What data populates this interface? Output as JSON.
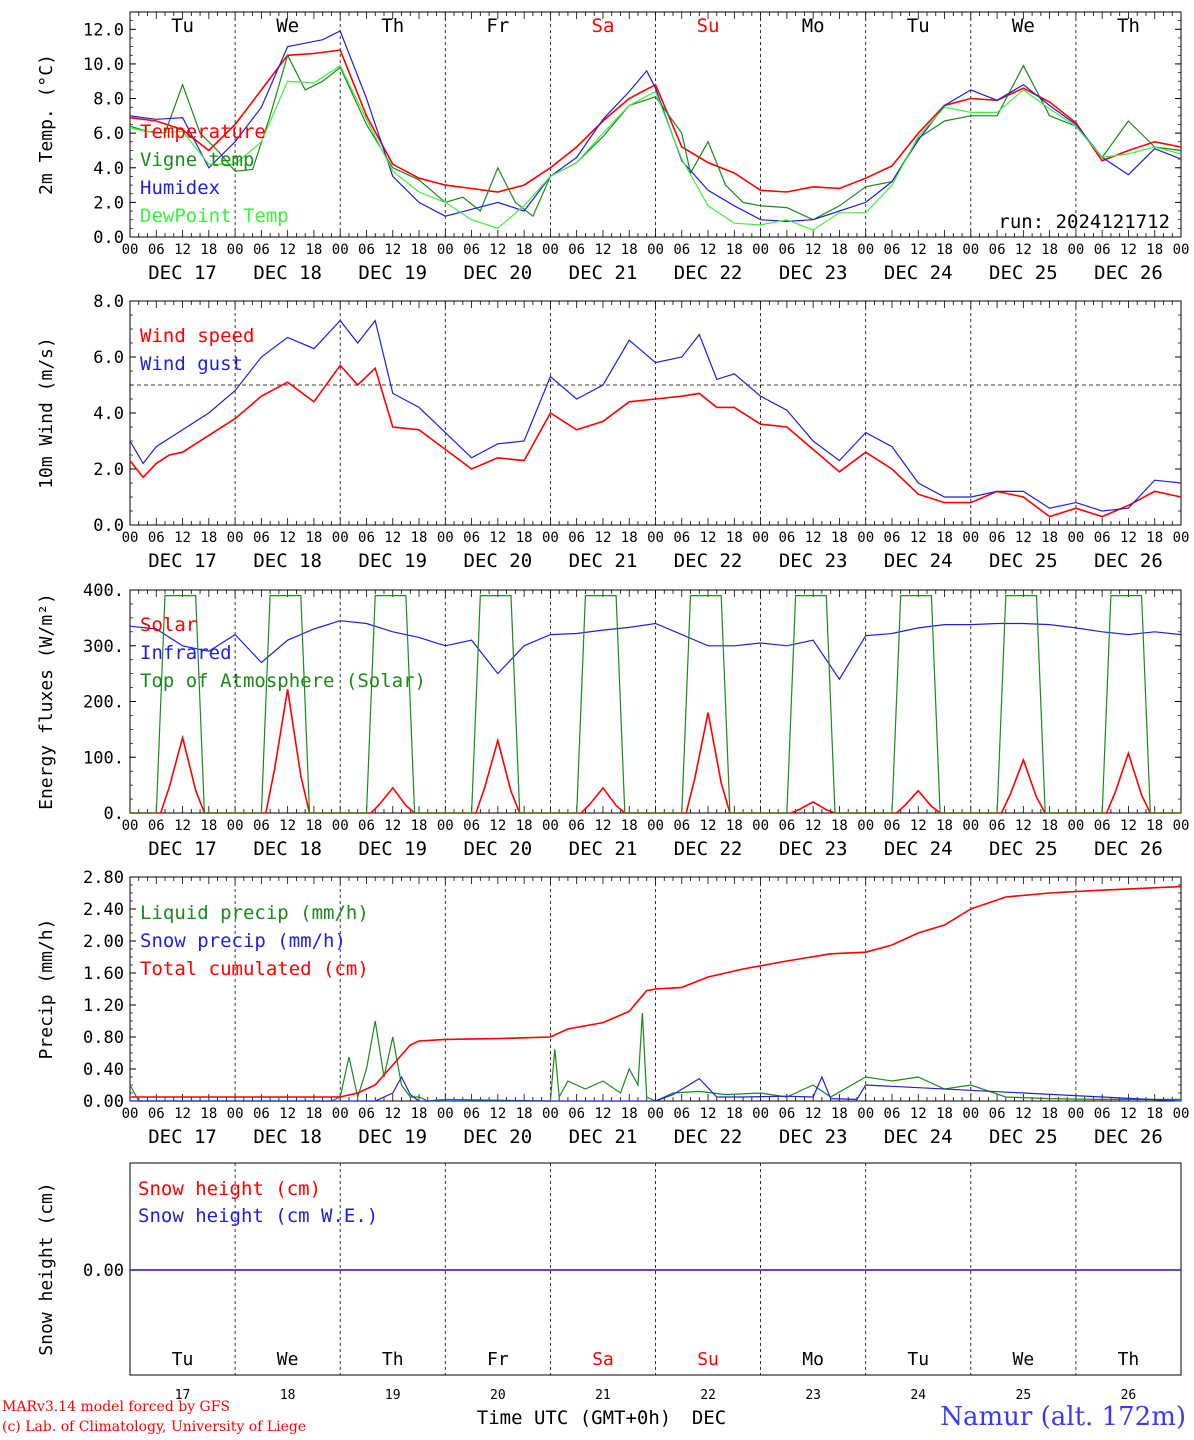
{
  "station": "Namur (alt. 172m)",
  "credits": [
    "MARv3.14 model forced by GFS",
    "(c) Lab. of Climatology, University of Liege"
  ],
  "run_label": "run: 2024121712",
  "xaxis_title": "Time UTC (GMT+0h)",
  "month_label": "DEC",
  "colors": {
    "red": "#ff0000",
    "green": "#1a8a1a",
    "blue": "#1f1fe0",
    "lightgreen": "#3cf03c",
    "weekend": "#ff0000"
  },
  "days": {
    "weekdays": [
      "Tu",
      "We",
      "Th",
      "Fr",
      "Sa",
      "Su",
      "Mo",
      "Tu",
      "We",
      "Th"
    ],
    "weekend_flags": [
      false,
      false,
      false,
      false,
      true,
      true,
      false,
      false,
      false,
      false
    ],
    "dates": [
      "DEC 17",
      "DEC 18",
      "DEC 19",
      "DEC 20",
      "DEC 21",
      "DEC 22",
      "DEC 23",
      "DEC 24",
      "DEC 25",
      "DEC 26"
    ],
    "day_numbers": [
      "17",
      "18",
      "19",
      "20",
      "21",
      "22",
      "23",
      "24",
      "25",
      "26"
    ],
    "hour_ticks": [
      "00",
      "06",
      "12",
      "18"
    ]
  },
  "chart_data": [
    {
      "type": "line",
      "ylabel": "2m Temp. (°C)",
      "ylim": [
        0,
        13
      ],
      "yticks": [
        "0.0",
        "2.0",
        "4.0",
        "6.0",
        "8.0",
        "10.0",
        "12.0"
      ],
      "ytick_values": [
        0,
        2,
        4,
        6,
        8,
        10,
        12
      ],
      "x_unit": "hours since DEC 17 00 UTC",
      "series": [
        {
          "name": "Temperature",
          "color": "red",
          "x": [
            0,
            6,
            12,
            18,
            24,
            30,
            36,
            42,
            48,
            54,
            60,
            66,
            72,
            78,
            84,
            90,
            96,
            102,
            108,
            114,
            120,
            126,
            132,
            138,
            144,
            150,
            156,
            162,
            168,
            174,
            180,
            186,
            192,
            198,
            204,
            210,
            216,
            222,
            228,
            234,
            240
          ],
          "values": [
            6.9,
            6.7,
            6.2,
            5.0,
            6.5,
            8.5,
            10.5,
            10.6,
            10.8,
            7.0,
            4.2,
            3.4,
            3.0,
            2.8,
            2.6,
            3.0,
            4.0,
            5.2,
            6.7,
            8.0,
            8.8,
            5.2,
            4.3,
            3.7,
            2.7,
            2.6,
            2.9,
            2.8,
            3.4,
            4.1,
            6.0,
            7.6,
            8.0,
            7.9,
            8.6,
            7.8,
            6.6,
            4.4,
            5.0,
            5.5,
            5.2
          ]
        },
        {
          "name": "Vigne temp",
          "color": "green",
          "x": [
            0,
            4,
            8,
            12,
            16,
            20,
            24,
            28,
            32,
            36,
            40,
            44,
            48,
            54,
            60,
            66,
            72,
            76,
            80,
            84,
            88,
            92,
            96,
            102,
            108,
            114,
            120,
            126,
            128,
            132,
            136,
            140,
            144,
            150,
            156,
            162,
            168,
            174,
            180,
            186,
            192,
            198,
            204,
            210,
            216,
            222,
            228,
            234,
            240
          ],
          "values": [
            6.4,
            6.1,
            6.0,
            8.8,
            6.0,
            5.0,
            3.8,
            3.9,
            7.0,
            10.5,
            8.5,
            9.0,
            9.8,
            6.5,
            4.0,
            3.3,
            2.0,
            2.3,
            1.5,
            4.0,
            2.0,
            1.2,
            3.5,
            4.3,
            5.8,
            7.6,
            8.1,
            6.0,
            3.7,
            5.5,
            3.0,
            2.0,
            1.8,
            1.7,
            1.0,
            1.8,
            2.9,
            3.2,
            5.7,
            6.7,
            7.0,
            7.0,
            9.9,
            7.0,
            6.4,
            4.6,
            6.7,
            5.2,
            5.0
          ]
        },
        {
          "name": "Humidex",
          "color": "blue",
          "x": [
            0,
            6,
            12,
            18,
            24,
            30,
            36,
            40,
            44,
            48,
            54,
            60,
            66,
            72,
            78,
            84,
            90,
            96,
            102,
            108,
            114,
            118,
            120,
            126,
            132,
            138,
            144,
            150,
            156,
            162,
            168,
            174,
            180,
            186,
            192,
            198,
            204,
            210,
            216,
            222,
            228,
            234,
            240
          ],
          "values": [
            7.0,
            6.8,
            6.9,
            4.0,
            5.5,
            7.5,
            11.0,
            11.2,
            11.4,
            11.9,
            8.0,
            3.5,
            2.0,
            1.2,
            1.6,
            2.0,
            1.5,
            3.5,
            4.6,
            6.8,
            8.4,
            9.6,
            8.6,
            4.4,
            2.7,
            1.8,
            1.0,
            0.9,
            1.0,
            1.5,
            2.0,
            3.2,
            5.6,
            7.6,
            8.5,
            7.9,
            8.8,
            7.6,
            6.5,
            4.6,
            3.6,
            5.1,
            4.5
          ]
        },
        {
          "name": "DewPoint Temp",
          "color": "lightgreen",
          "x": [
            0,
            6,
            12,
            18,
            24,
            30,
            36,
            42,
            48,
            54,
            60,
            66,
            72,
            78,
            84,
            90,
            96,
            102,
            108,
            114,
            120,
            126,
            132,
            138,
            144,
            150,
            156,
            162,
            168,
            174,
            180,
            186,
            192,
            198,
            204,
            210,
            216,
            222,
            228,
            234,
            240
          ],
          "values": [
            6.3,
            6.0,
            6.1,
            4.2,
            4.2,
            5.5,
            9.0,
            8.9,
            9.9,
            6.8,
            3.8,
            2.6,
            2.0,
            1.0,
            0.5,
            1.8,
            3.5,
            4.3,
            6.0,
            7.6,
            8.4,
            4.5,
            1.8,
            0.8,
            0.7,
            1.0,
            0.4,
            1.4,
            1.4,
            3.0,
            5.8,
            7.5,
            7.2,
            7.2,
            8.5,
            7.4,
            6.4,
            4.6,
            4.8,
            5.2,
            4.8
          ]
        }
      ],
      "annotation": "run: 2024121712"
    },
    {
      "type": "line",
      "ylabel": "10m Wind (m/s)",
      "ylim": [
        0,
        8
      ],
      "yticks": [
        "0.0",
        "2.0",
        "4.0",
        "6.0",
        "8.0"
      ],
      "ytick_values": [
        0,
        2,
        4,
        6,
        8
      ],
      "reference_line": 5.0,
      "series": [
        {
          "name": "Wind speed",
          "color": "red",
          "x": [
            0,
            3,
            6,
            9,
            12,
            18,
            24,
            30,
            36,
            42,
            48,
            52,
            56,
            60,
            66,
            72,
            78,
            84,
            90,
            96,
            102,
            108,
            114,
            120,
            126,
            130,
            134,
            138,
            144,
            150,
            156,
            162,
            168,
            174,
            180,
            186,
            192,
            198,
            204,
            210,
            216,
            222,
            228,
            234,
            240
          ],
          "values": [
            2.3,
            1.7,
            2.2,
            2.5,
            2.6,
            3.2,
            3.8,
            4.6,
            5.1,
            4.4,
            5.7,
            5.0,
            5.6,
            3.5,
            3.4,
            2.7,
            2.0,
            2.4,
            2.3,
            4.0,
            3.4,
            3.7,
            4.4,
            4.5,
            4.6,
            4.7,
            4.2,
            4.2,
            3.6,
            3.5,
            2.7,
            1.9,
            2.6,
            2.0,
            1.1,
            0.8,
            0.8,
            1.2,
            1.0,
            0.3,
            0.6,
            0.3,
            0.7,
            1.2,
            1.0
          ]
        },
        {
          "name": "Wind gust",
          "color": "blue",
          "x": [
            0,
            3,
            6,
            9,
            12,
            18,
            24,
            30,
            36,
            42,
            48,
            52,
            56,
            60,
            66,
            72,
            78,
            84,
            90,
            96,
            102,
            108,
            114,
            120,
            126,
            130,
            134,
            138,
            144,
            150,
            156,
            162,
            168,
            174,
            180,
            186,
            192,
            198,
            204,
            210,
            216,
            222,
            228,
            234,
            240
          ],
          "values": [
            3.0,
            2.2,
            2.8,
            3.1,
            3.4,
            4.0,
            4.8,
            6.0,
            6.7,
            6.3,
            7.3,
            6.5,
            7.3,
            4.7,
            4.2,
            3.3,
            2.4,
            2.9,
            3.0,
            5.3,
            4.5,
            5.0,
            6.6,
            5.8,
            6.0,
            6.8,
            5.2,
            5.4,
            4.6,
            4.1,
            3.0,
            2.3,
            3.3,
            2.8,
            1.5,
            1.0,
            1.0,
            1.2,
            1.2,
            0.6,
            0.8,
            0.5,
            0.6,
            1.6,
            1.5
          ]
        }
      ]
    },
    {
      "type": "line",
      "ylabel": "Energy fluxes (W/m²)",
      "ylim": [
        0,
        400
      ],
      "yticks": [
        "0.",
        "100.",
        "200.",
        "300.",
        "400."
      ],
      "ytick_values": [
        0,
        100,
        200,
        300,
        400
      ],
      "series": [
        {
          "name": "Solar",
          "color": "red",
          "daily_peak_hour": 12,
          "daily_peaks": [
            135,
            222,
            45,
            130,
            45,
            180,
            20,
            40,
            95,
            107
          ]
        },
        {
          "name": "Infrared",
          "color": "blue",
          "x": [
            0,
            6,
            12,
            18,
            24,
            30,
            36,
            42,
            48,
            54,
            60,
            66,
            72,
            78,
            84,
            90,
            96,
            102,
            108,
            114,
            120,
            126,
            132,
            138,
            144,
            150,
            156,
            162,
            168,
            174,
            180,
            186,
            192,
            198,
            204,
            210,
            216,
            222,
            228,
            234,
            240
          ],
          "values": [
            335,
            330,
            300,
            290,
            320,
            270,
            310,
            330,
            345,
            340,
            325,
            315,
            300,
            310,
            250,
            300,
            320,
            322,
            328,
            333,
            340,
            320,
            300,
            300,
            305,
            300,
            310,
            240,
            318,
            322,
            332,
            338,
            338,
            340,
            340,
            338,
            332,
            325,
            320,
            325,
            320
          ]
        },
        {
          "name": "Top of Atmosphere (Solar)",
          "color": "green",
          "daily_peak_hour": 12,
          "daily_peaks": [
            390,
            390,
            390,
            390,
            390,
            390,
            390,
            390,
            390,
            390
          ]
        }
      ]
    },
    {
      "type": "line",
      "ylabel": "Precip (mm/h)",
      "ylim": [
        0,
        2.8
      ],
      "yticks": [
        "0.00",
        "0.40",
        "0.80",
        "1.20",
        "1.60",
        "2.00",
        "2.40",
        "2.80"
      ],
      "ytick_values": [
        0,
        0.4,
        0.8,
        1.2,
        1.6,
        2.0,
        2.4,
        2.8
      ],
      "series": [
        {
          "name": "Liquid precip (mm/h)",
          "color": "green",
          "x": [
            0,
            2,
            4,
            46,
            48,
            50,
            52,
            54,
            56,
            58,
            60,
            62,
            64,
            66,
            68,
            72,
            96,
            97,
            98,
            100,
            104,
            108,
            112,
            114,
            116,
            117,
            118,
            120,
            124,
            130,
            136,
            144,
            150,
            156,
            160,
            168,
            174,
            180,
            186,
            192,
            200,
            210,
            220,
            240
          ],
          "values": [
            0.2,
            0.0,
            0.0,
            0.0,
            0.05,
            0.55,
            0.05,
            0.4,
            1.0,
            0.3,
            0.8,
            0.2,
            0.05,
            0.05,
            0.0,
            0.02,
            0.0,
            0.65,
            0.05,
            0.25,
            0.15,
            0.25,
            0.1,
            0.4,
            0.2,
            1.1,
            0.05,
            0.0,
            0.1,
            0.12,
            0.08,
            0.1,
            0.05,
            0.2,
            0.05,
            0.3,
            0.25,
            0.3,
            0.15,
            0.2,
            0.05,
            0.03,
            0.02,
            0.02
          ]
        },
        {
          "name": "Snow precip (mm/h)",
          "color": "blue",
          "x": [
            0,
            56,
            60,
            62,
            64,
            66,
            120,
            124,
            130,
            134,
            140,
            150,
            156,
            158,
            160,
            166,
            168,
            240
          ],
          "values": [
            0,
            0,
            0.1,
            0.3,
            0.08,
            0,
            0,
            0.08,
            0.28,
            0.05,
            0.05,
            0.06,
            0.05,
            0.3,
            0.03,
            0.02,
            0.2,
            0
          ]
        },
        {
          "name": "Total cumulated (cm)",
          "color": "red",
          "x": [
            0,
            48,
            52,
            56,
            60,
            64,
            66,
            72,
            84,
            90,
            96,
            100,
            108,
            114,
            118,
            120,
            126,
            132,
            140,
            150,
            160,
            168,
            174,
            180,
            186,
            192,
            200,
            210,
            220,
            240
          ],
          "values": [
            0.05,
            0.05,
            0.1,
            0.2,
            0.45,
            0.7,
            0.75,
            0.77,
            0.78,
            0.79,
            0.8,
            0.9,
            0.98,
            1.12,
            1.38,
            1.4,
            1.42,
            1.55,
            1.65,
            1.75,
            1.84,
            1.86,
            1.95,
            2.1,
            2.2,
            2.4,
            2.55,
            2.6,
            2.63,
            2.68
          ]
        }
      ]
    },
    {
      "type": "line",
      "ylabel": "Snow height (cm)",
      "yticks": [
        "0.00"
      ],
      "ytick_values": [
        0
      ],
      "series": [
        {
          "name": "Snow height (cm)",
          "color": "red",
          "x": [
            0,
            240
          ],
          "values": [
            0,
            0
          ]
        },
        {
          "name": "Snow height (cm W.E.)",
          "color": "blue",
          "x": [
            0,
            240
          ],
          "values": [
            0,
            0
          ]
        }
      ]
    }
  ]
}
